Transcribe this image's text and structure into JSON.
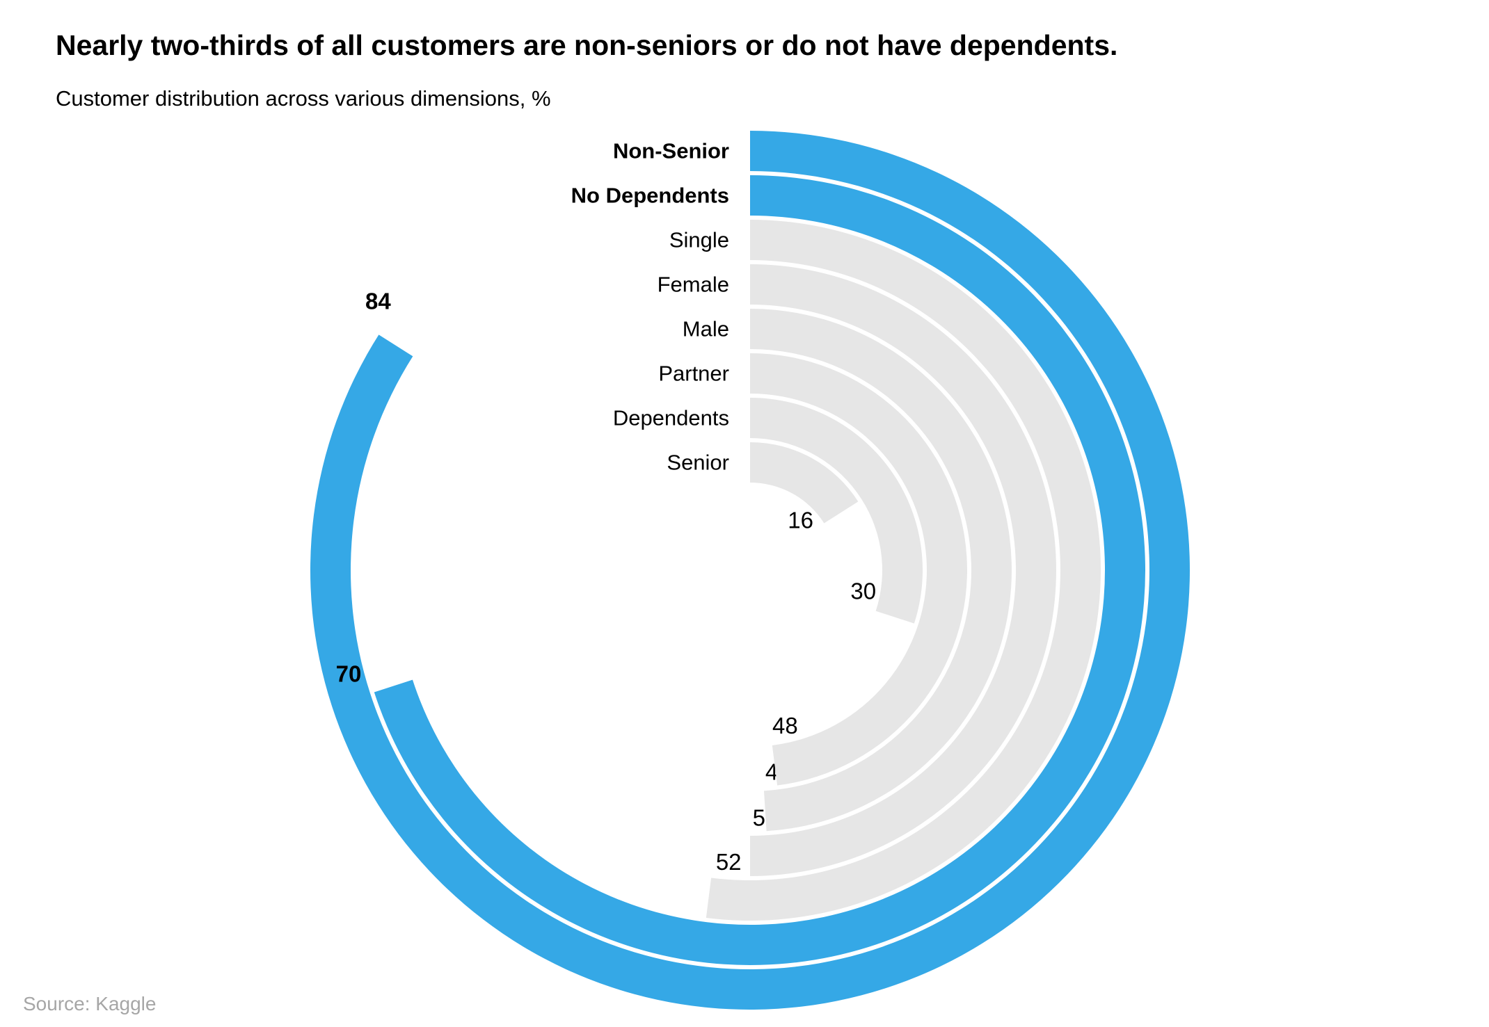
{
  "chart_data": {
    "type": "radial-bar",
    "title": "Nearly two-thirds of all customers are non-seniors or do not have dependents.",
    "subtitle": "Customer distribution across various dimensions, %",
    "source": "Source: Kaggle",
    "unit": "%",
    "max_value": 100,
    "categories": [
      "Non-Senior",
      "No Dependents",
      "Single",
      "Female",
      "Male",
      "Partner",
      "Dependents",
      "Senior"
    ],
    "values": [
      84,
      70,
      52,
      50,
      49,
      48,
      30,
      16
    ],
    "highlight": [
      "Non-Senior",
      "No Dependents"
    ],
    "colors": {
      "highlight": "#35a8e6",
      "default": "#e6e6e6"
    }
  }
}
